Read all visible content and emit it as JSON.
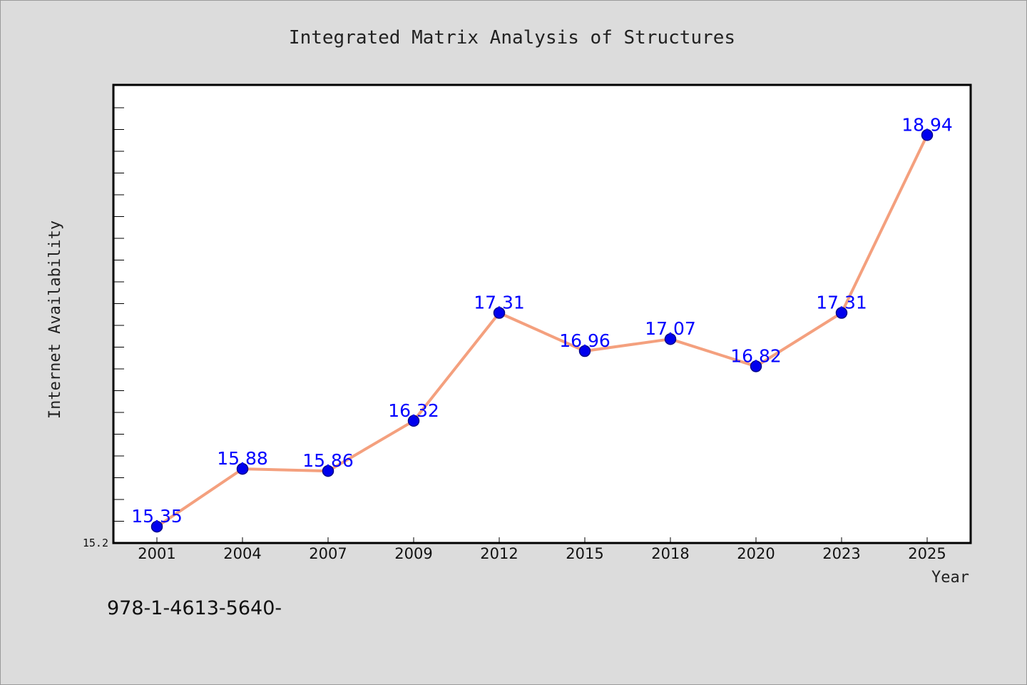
{
  "chart_data": {
    "type": "line",
    "title": "Integrated Matrix Analysis of Structures",
    "xlabel": "Year",
    "ylabel": "Internet Availability",
    "categories": [
      "2001",
      "2004",
      "2007",
      "2009",
      "2012",
      "2015",
      "2018",
      "2020",
      "2023",
      "2025"
    ],
    "series": [
      {
        "values": [
          15.35,
          15.88,
          15.86,
          16.32,
          17.31,
          16.96,
          17.07,
          16.82,
          17.31,
          18.94
        ],
        "data_labels": [
          "15.35",
          "15.88",
          "15.86",
          "16.32",
          "17.31",
          "16.96",
          "17.07",
          "16.82",
          "17.31",
          "18.94"
        ]
      }
    ],
    "ylim": [
      15.2,
      19.4
    ],
    "yticks_labeled": [
      "15.2"
    ],
    "grid": false,
    "legend": "none",
    "colors": {
      "line": "#f4a07e",
      "marker": "#0000ee",
      "marker_edge": "#00008b",
      "label": "#0000ff",
      "plot_bg": "#ffffff",
      "page_bg": "#dcdcdc"
    }
  },
  "footer_text": "978-1-4613-5640-"
}
